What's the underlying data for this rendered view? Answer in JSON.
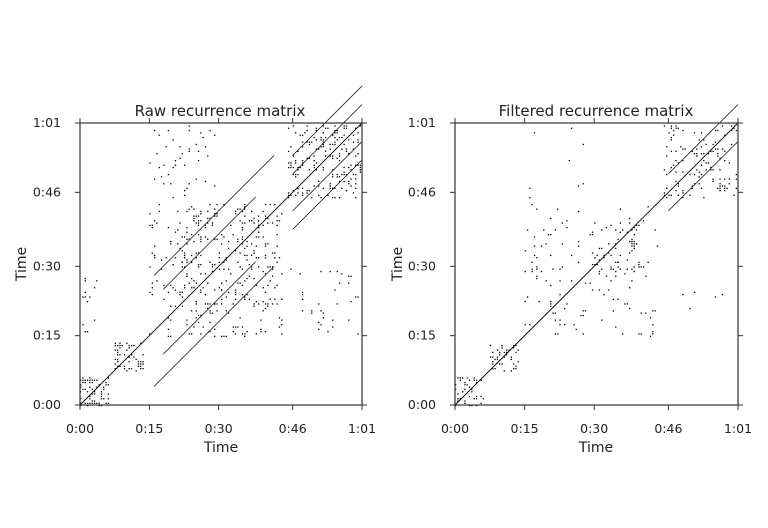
{
  "chart_data": [
    {
      "type": "heatmap",
      "title": "Raw recurrence matrix",
      "xlabel": "Time",
      "ylabel": "Time",
      "tick_labels": [
        "0:00",
        "0:15",
        "0:30",
        "0:46",
        "1:01"
      ],
      "tick_values_s": [
        0,
        15,
        30,
        46,
        61
      ],
      "xlim_s": [
        0,
        61
      ],
      "ylim_s": [
        0,
        61
      ],
      "colors": {
        "recurrence": "#000000",
        "background": "#ffffff"
      },
      "blocks": [
        {
          "x": [
            0,
            6.5
          ],
          "y": [
            0,
            6.5
          ],
          "density": 0.35
        },
        {
          "x": [
            7.5,
            14
          ],
          "y": [
            7.5,
            14
          ],
          "density": 0.3
        },
        {
          "x": [
            15,
            44
          ],
          "y": [
            15,
            44
          ],
          "density": 0.07
        },
        {
          "x": [
            22,
            44
          ],
          "y": [
            22,
            44
          ],
          "density": 0.06
        },
        {
          "x": [
            45,
            61
          ],
          "y": [
            45,
            61
          ],
          "density": 0.16
        },
        {
          "x": [
            15,
            30
          ],
          "y": [
            45,
            61
          ],
          "density": 0.035
        },
        {
          "x": [
            45,
            61
          ],
          "y": [
            15,
            30
          ],
          "density": 0.035
        },
        {
          "x": [
            0,
            4
          ],
          "y": [
            16,
            28
          ],
          "density": 0.05
        }
      ],
      "diagonals": [
        {
          "offset": 7,
          "from": 18,
          "to": 38
        },
        {
          "offset": -7,
          "from": 18,
          "to": 38
        },
        {
          "offset": 12,
          "from": 16,
          "to": 42
        },
        {
          "offset": -12,
          "from": 16,
          "to": 42
        },
        {
          "offset": 4,
          "from": 46,
          "to": 61
        },
        {
          "offset": -4,
          "from": 46,
          "to": 61
        },
        {
          "offset": 8,
          "from": 46,
          "to": 61
        },
        {
          "offset": -8,
          "from": 46,
          "to": 61
        }
      ]
    },
    {
      "type": "heatmap",
      "title": "Filtered recurrence matrix",
      "xlabel": "Time",
      "ylabel": "Time",
      "tick_labels": [
        "0:00",
        "0:15",
        "0:30",
        "0:46",
        "1:01"
      ],
      "tick_values_s": [
        0,
        15,
        30,
        46,
        61
      ],
      "xlim_s": [
        0,
        61
      ],
      "ylim_s": [
        0,
        61
      ],
      "colors": {
        "recurrence": "#000000",
        "background": "#ffffff"
      },
      "blocks": [
        {
          "x": [
            0,
            6.5
          ],
          "y": [
            0,
            6.5
          ],
          "density": 0.25
        },
        {
          "x": [
            7.5,
            14
          ],
          "y": [
            7.5,
            14
          ],
          "density": 0.22
        },
        {
          "x": [
            15,
            44
          ],
          "y": [
            15,
            44
          ],
          "density": 0.04
        },
        {
          "x": [
            29,
            40
          ],
          "y": [
            29,
            40
          ],
          "density": 0.1
        },
        {
          "x": [
            45,
            61
          ],
          "y": [
            45,
            61
          ],
          "density": 0.12
        },
        {
          "x": [
            15,
            30
          ],
          "y": [
            45,
            61
          ],
          "density": 0.005
        },
        {
          "x": [
            45,
            61
          ],
          "y": [
            15,
            30
          ],
          "density": 0.005
        }
      ],
      "diagonals": [
        {
          "offset": 4,
          "from": 46,
          "to": 61
        },
        {
          "offset": -4,
          "from": 46,
          "to": 61
        }
      ]
    }
  ]
}
